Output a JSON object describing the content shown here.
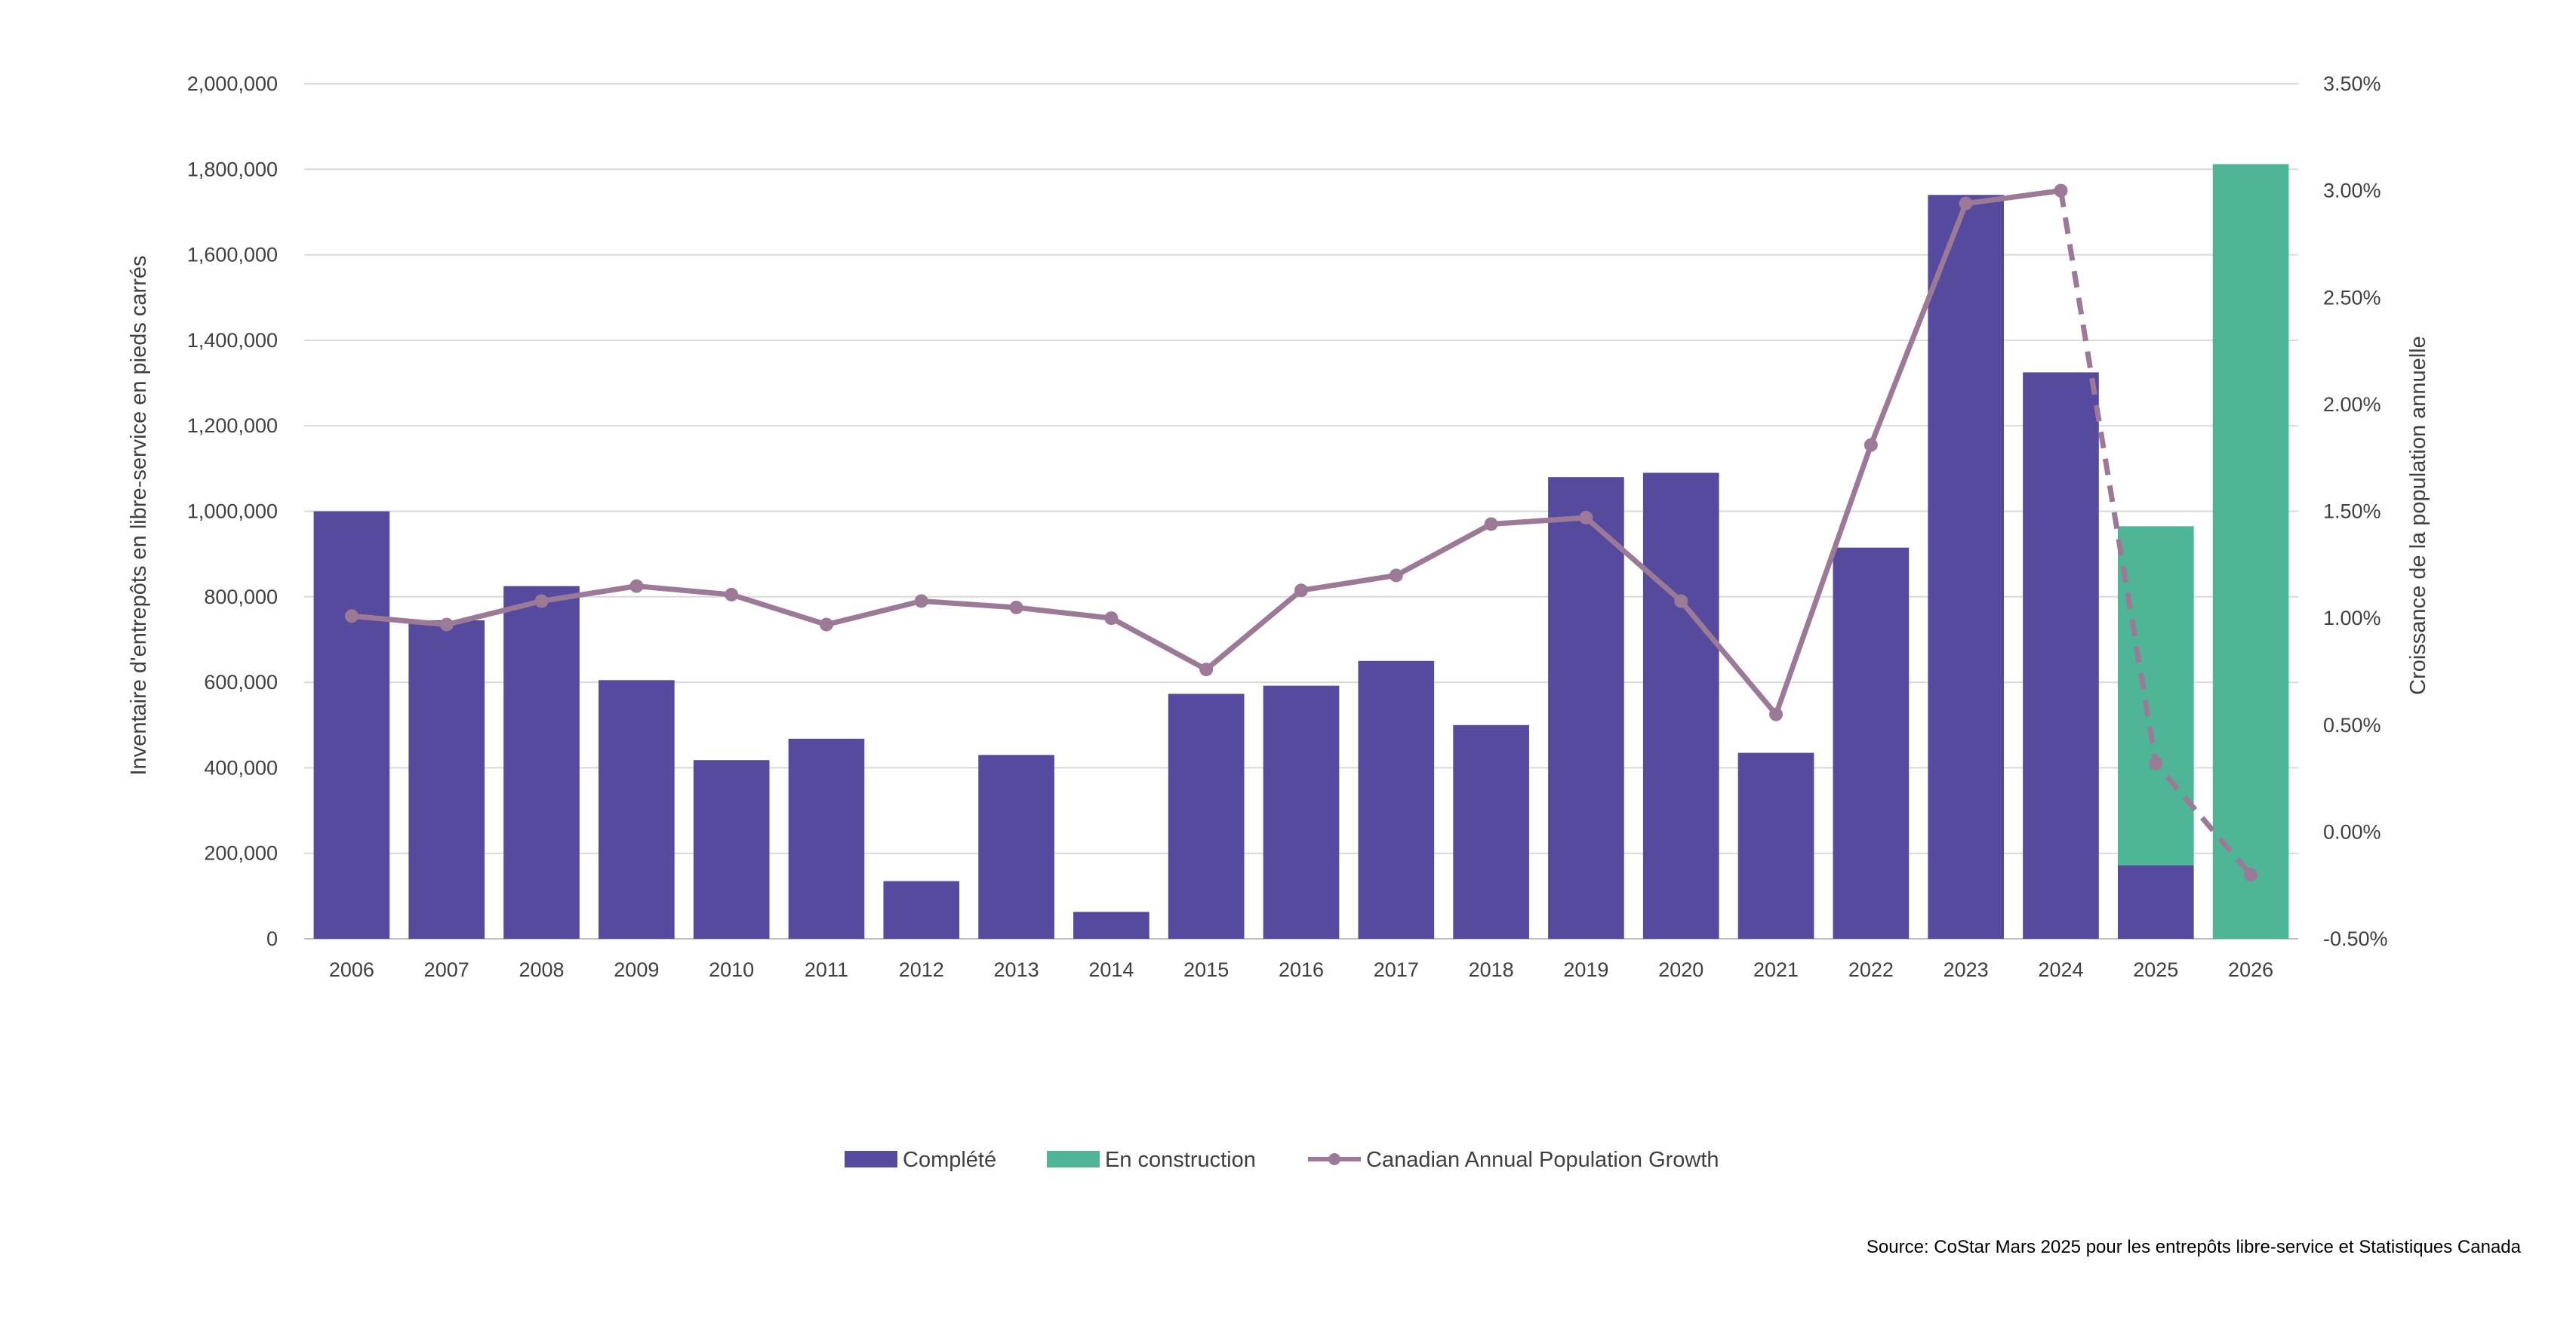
{
  "chart_data": {
    "type": "bar",
    "categories": [
      "2006",
      "2007",
      "2008",
      "2009",
      "2010",
      "2011",
      "2012",
      "2013",
      "2014",
      "2015",
      "2016",
      "2017",
      "2018",
      "2019",
      "2020",
      "2021",
      "2022",
      "2023",
      "2024",
      "2025",
      "2026"
    ],
    "series": [
      {
        "name": "Complété",
        "type": "bar",
        "axis": "left",
        "color": "#554a9e",
        "values": [
          1000000,
          745000,
          825000,
          605000,
          418000,
          468000,
          135000,
          430000,
          63000,
          573000,
          592000,
          650000,
          500000,
          1080000,
          1090000,
          435000,
          915000,
          1740000,
          1325000,
          172000,
          0
        ]
      },
      {
        "name": "En construction",
        "type": "bar",
        "axis": "left",
        "stacked": true,
        "color": "#4eb597",
        "values": [
          0,
          0,
          0,
          0,
          0,
          0,
          0,
          0,
          0,
          0,
          0,
          0,
          0,
          0,
          0,
          0,
          0,
          0,
          0,
          793000,
          1812000
        ]
      },
      {
        "name": "Canadian Annual Population Growth",
        "type": "line",
        "axis": "right",
        "color": "#9c7a97",
        "values": [
          1.01,
          0.97,
          1.08,
          1.15,
          1.11,
          0.97,
          1.08,
          1.05,
          1.0,
          0.76,
          1.13,
          1.2,
          1.44,
          1.47,
          1.08,
          0.55,
          1.81,
          2.94,
          3.0,
          0.32,
          -0.2
        ],
        "dashed_from_index": 18
      }
    ],
    "yaxis_left": {
      "label": "Inventaire d'entrepôts en libre-service en pieds carrés",
      "range": [
        0,
        2000000
      ],
      "ticks": [
        0,
        200000,
        400000,
        600000,
        800000,
        1000000,
        1200000,
        1400000,
        1600000,
        1800000,
        2000000
      ],
      "tick_labels": [
        "0",
        "200,000",
        "400,000",
        "600,000",
        "800,000",
        "1,000,000",
        "1,200,000",
        "1,400,000",
        "1,600,000",
        "1,800,000",
        "2,000,000"
      ]
    },
    "yaxis_right": {
      "label": "Croissance de la population annuelle",
      "range": [
        -0.5,
        3.5
      ],
      "ticks": [
        -0.5,
        0,
        0.5,
        1,
        1.5,
        2,
        2.5,
        3,
        3.5
      ],
      "tick_labels": [
        "-0.50%",
        "0.00%",
        "0.50%",
        "1.00%",
        "1.50%",
        "2.00%",
        "2.50%",
        "3.00%",
        "3.50%"
      ]
    },
    "grid": true,
    "legend_position": "bottom",
    "source": "Source: CoStar Mars 2025 pour les entrepôts libre-service et Statistiques Canada"
  }
}
